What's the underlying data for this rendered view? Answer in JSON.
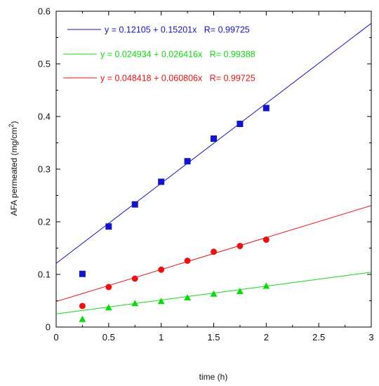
{
  "chart_data": {
    "type": "scatter",
    "xlabel": "time (h)",
    "ylabel_main": "AFA permeated (mg/cm",
    "ylabel_sup": "2",
    "ylabel_close": ")",
    "xlim": [
      0,
      3
    ],
    "ylim": [
      0,
      0.6
    ],
    "x_ticks": [
      "0",
      "0.5",
      "1",
      "1.5",
      "2",
      "2.5",
      "3"
    ],
    "y_ticks": [
      "0",
      "0.1",
      "0.2",
      "0.3",
      "0.4",
      "0.5",
      "0.6"
    ],
    "grid": false,
    "legend_position": "top-left",
    "series": [
      {
        "color": "#1414c8",
        "marker": "square",
        "x": [
          0.25,
          0.5,
          0.75,
          1.0,
          1.25,
          1.5,
          1.75,
          2.0
        ],
        "y": [
          0.101,
          0.191,
          0.233,
          0.276,
          0.315,
          0.358,
          0.386,
          0.416
        ],
        "fit": {
          "intercept": 0.12105,
          "slope": 0.15201
        },
        "legend": "y = 0.12105 + 0.15201x   R= 0.99725"
      },
      {
        "color": "#10d810",
        "marker": "triangle",
        "x": [
          0.25,
          0.5,
          0.75,
          1.0,
          1.25,
          1.5,
          1.75,
          2.0
        ],
        "y": [
          0.015,
          0.037,
          0.045,
          0.049,
          0.056,
          0.063,
          0.068,
          0.078
        ],
        "fit": {
          "intercept": 0.024934,
          "slope": 0.026416
        },
        "legend": "y = 0.024934 + 0.026416x   R= 0.99388"
      },
      {
        "color": "#e81414",
        "marker": "circle",
        "x": [
          0.25,
          0.5,
          0.75,
          1.0,
          1.25,
          1.5,
          1.75,
          2.0
        ],
        "y": [
          0.04,
          0.076,
          0.092,
          0.109,
          0.126,
          0.143,
          0.154,
          0.166
        ],
        "fit": {
          "intercept": 0.048418,
          "slope": 0.060806
        },
        "legend": "y = 0.048418 + 0.060806x   R= 0.99725"
      }
    ]
  }
}
